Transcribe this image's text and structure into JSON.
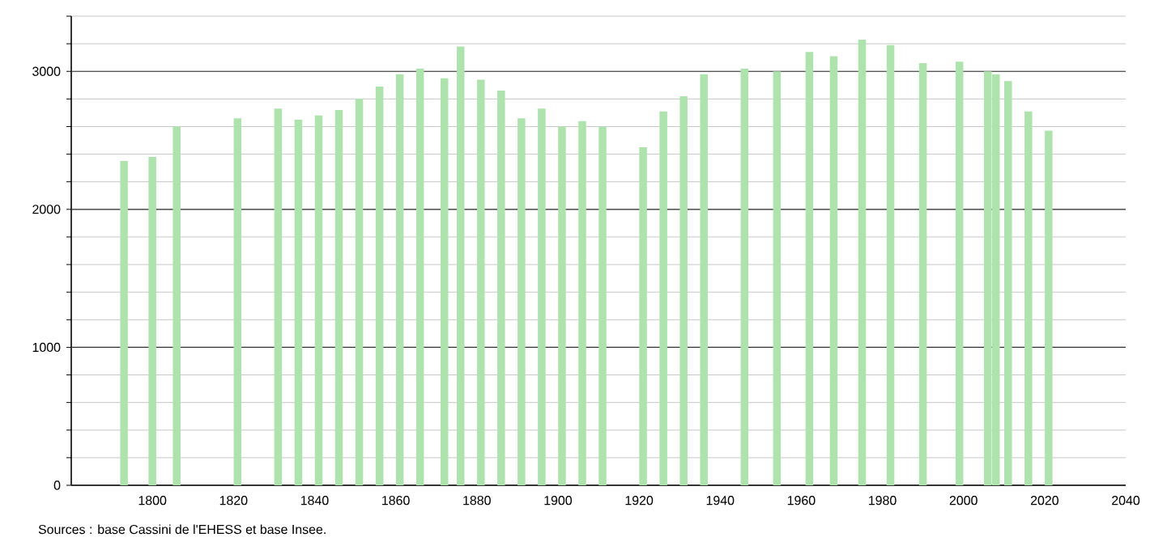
{
  "chart_data": {
    "type": "bar",
    "color": "#aee3ae",
    "x": [
      1793,
      1800,
      1806,
      1821,
      1831,
      1836,
      1841,
      1846,
      1851,
      1856,
      1861,
      1866,
      1872,
      1876,
      1881,
      1886,
      1891,
      1896,
      1901,
      1906,
      1911,
      1921,
      1926,
      1931,
      1936,
      1946,
      1954,
      1962,
      1968,
      1975,
      1982,
      1990,
      1999,
      2006,
      2008,
      2011,
      2016,
      2021
    ],
    "values": [
      2350,
      2380,
      2600,
      2660,
      2730,
      2650,
      2680,
      2720,
      2800,
      2890,
      2980,
      3020,
      2950,
      3180,
      2940,
      2860,
      2660,
      2730,
      2600,
      2640,
      2600,
      2450,
      2710,
      2820,
      2980,
      3020,
      3000,
      3140,
      3110,
      3230,
      3190,
      3060,
      3070,
      3000,
      2980,
      2930,
      2710,
      2570
    ],
    "xlim": [
      1780,
      2040
    ],
    "xticks": [
      1800,
      1820,
      1840,
      1860,
      1880,
      1900,
      1920,
      1940,
      1960,
      1980,
      2000,
      2020,
      2040
    ],
    "ylim": [
      0,
      3400
    ],
    "yticks": [
      0,
      {
        "value": 200,
        "label": null
      },
      {
        "value": 400,
        "label": null
      },
      {
        "value": 600,
        "label": null
      },
      {
        "value": 800,
        "label": null
      },
      1000,
      {
        "value": 1200,
        "label": null
      },
      {
        "value": 1400,
        "label": null
      },
      {
        "value": 1600,
        "label": null
      },
      {
        "value": 1800,
        "label": null
      },
      2000,
      {
        "value": 2200,
        "label": null
      },
      {
        "value": 2400,
        "label": null
      },
      {
        "value": 2600,
        "label": null
      },
      {
        "value": 2800,
        "label": null
      },
      3000,
      {
        "value": 3200,
        "label": null
      },
      {
        "value": 3400,
        "label": null
      }
    ],
    "grid": "y",
    "annotations": [
      "Sources : base Cassini de l'EHESS et base Insee."
    ]
  }
}
